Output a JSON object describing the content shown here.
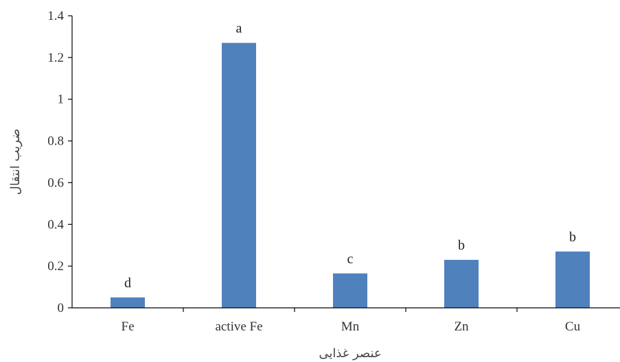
{
  "chart_data": {
    "type": "bar",
    "categories": [
      "Fe",
      "active Fe",
      "Mn",
      "Zn",
      "Cu"
    ],
    "values": [
      0.05,
      1.27,
      0.165,
      0.23,
      0.27
    ],
    "data_labels": [
      "d",
      "a",
      "c",
      "b",
      "b"
    ],
    "title": "",
    "xlabel": "عنصر غذایی",
    "ylabel": "ضریب انتقال",
    "ylim": [
      0,
      1.4
    ],
    "yticks": [
      "0",
      "0.2",
      "0.4",
      "0.6",
      "0.8",
      "1",
      "1.2",
      "1.4"
    ],
    "grid": false,
    "bar_color": "#4f81bd"
  }
}
